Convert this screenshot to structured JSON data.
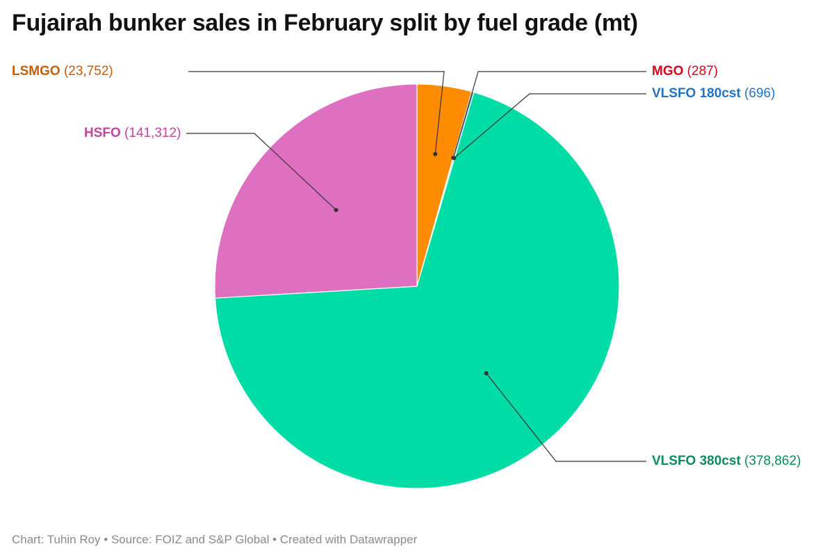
{
  "title": "Fujairah bunker sales in February split by fuel grade (mt)",
  "footer": {
    "chart_by": "Chart: Tuhin Roy",
    "sep1": " • ",
    "source": "Source: FOIZ and S&P Global",
    "sep2": " • ",
    "created": "Created with Datawrapper"
  },
  "chart_data": {
    "type": "pie",
    "title": "Fujairah bunker sales in February split by fuel grade (mt)",
    "slices": [
      {
        "name": "LSMGO",
        "value": 23752,
        "value_label": "(23,752)",
        "color": "#ff8c00",
        "label_color": "#c15f07"
      },
      {
        "name": "MGO",
        "value": 287,
        "value_label": "(287)",
        "color": "#d62728",
        "label_color": "#d9001b"
      },
      {
        "name": "VLSFO 180cst",
        "value": 696,
        "value_label": "(696)",
        "color": "#1f77b4",
        "label_color": "#1f72c4"
      },
      {
        "name": "VLSFO 380cst",
        "value": 378862,
        "value_label": "(378,862)",
        "color": "#00dca5",
        "label_color": "#0a8a60"
      },
      {
        "name": "HSFO",
        "value": 141312,
        "value_label": "(141,312)",
        "color": "#df6fc1",
        "label_color": "#c1449f"
      }
    ]
  }
}
